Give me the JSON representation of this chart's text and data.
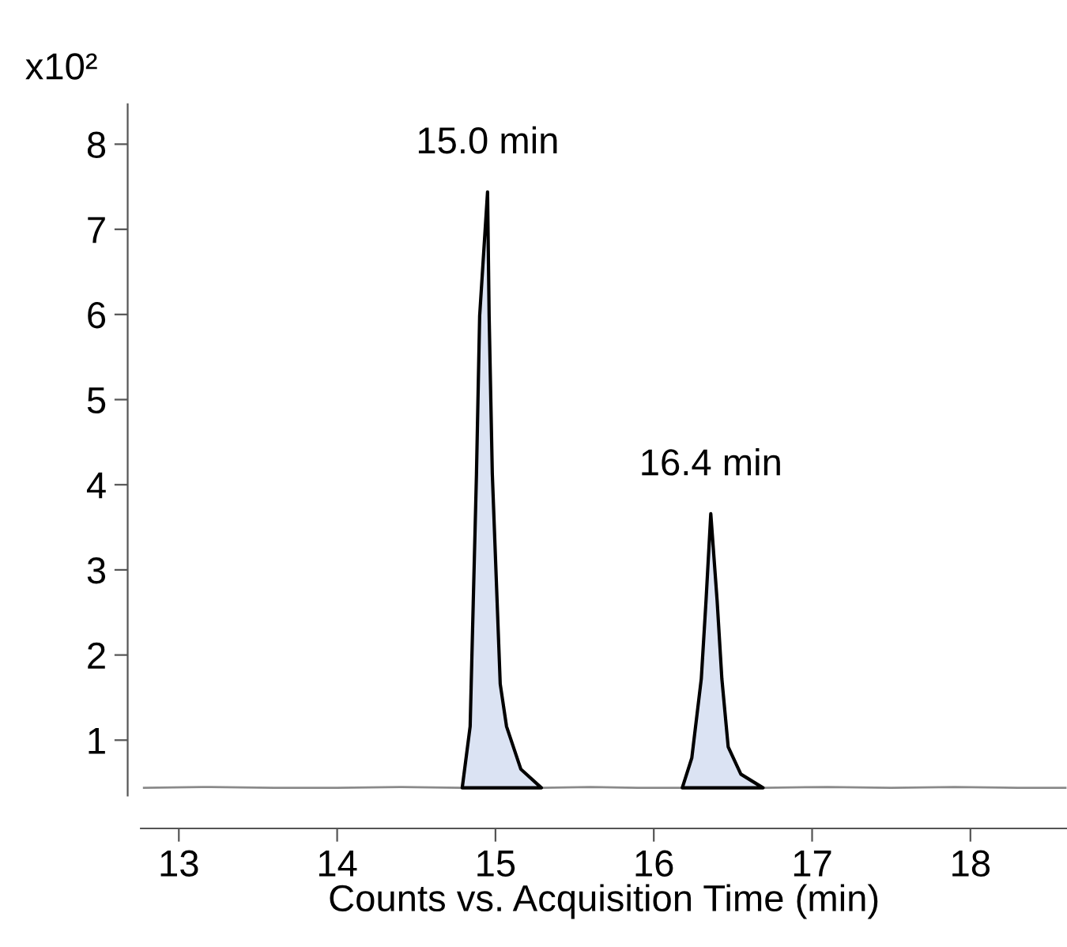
{
  "chart_data": {
    "type": "line",
    "xlabel": "Counts vs. Acquisition Time (min)",
    "ylabel": "x10²",
    "xlim": [
      12.76,
      18.61
    ],
    "xticks": [
      13,
      14,
      15,
      16,
      17,
      18
    ],
    "ylim": [
      0.35,
      8.47
    ],
    "yticks": [
      1,
      2,
      3,
      4,
      5,
      6,
      7,
      8
    ],
    "grid": false,
    "legend": false,
    "marker": "none",
    "series": [
      {
        "color": "#8a8a8a",
        "x": [
          12.78,
          13.2,
          13.6,
          14.0,
          14.4,
          14.79,
          null,
          15.29,
          15.6,
          15.9,
          16.18,
          null,
          16.69,
          17.1,
          17.5,
          17.9,
          18.3,
          18.6
        ],
        "values": [
          0.44,
          0.45,
          0.44,
          0.44,
          0.45,
          0.44,
          null,
          0.44,
          0.45,
          0.44,
          0.44,
          null,
          0.44,
          0.45,
          0.44,
          0.45,
          0.44,
          0.44
        ]
      },
      {
        "type": "area",
        "color": "#dbe3f3",
        "x": [
          14.79,
          14.84,
          14.88,
          14.9,
          14.95,
          14.96,
          14.98,
          15.03,
          15.07,
          15.16,
          15.29
        ],
        "values": [
          0.44,
          1.16,
          4.13,
          5.98,
          7.44,
          5.98,
          4.13,
          1.66,
          1.16,
          0.66,
          0.44
        ]
      },
      {
        "type": "area",
        "color": "#dbe3f3",
        "x": [
          16.18,
          16.24,
          16.3,
          16.33,
          16.36,
          16.4,
          16.43,
          16.47,
          16.55,
          16.69
        ],
        "values": [
          0.44,
          0.79,
          1.72,
          2.64,
          3.66,
          2.64,
          1.72,
          0.92,
          0.6,
          0.44
        ]
      }
    ],
    "annotations": [
      {
        "text": "15.0 min",
        "x": 14.95,
        "y": 7.44
      },
      {
        "text": "16.4 min",
        "x": 16.36,
        "y": 3.66
      }
    ]
  }
}
